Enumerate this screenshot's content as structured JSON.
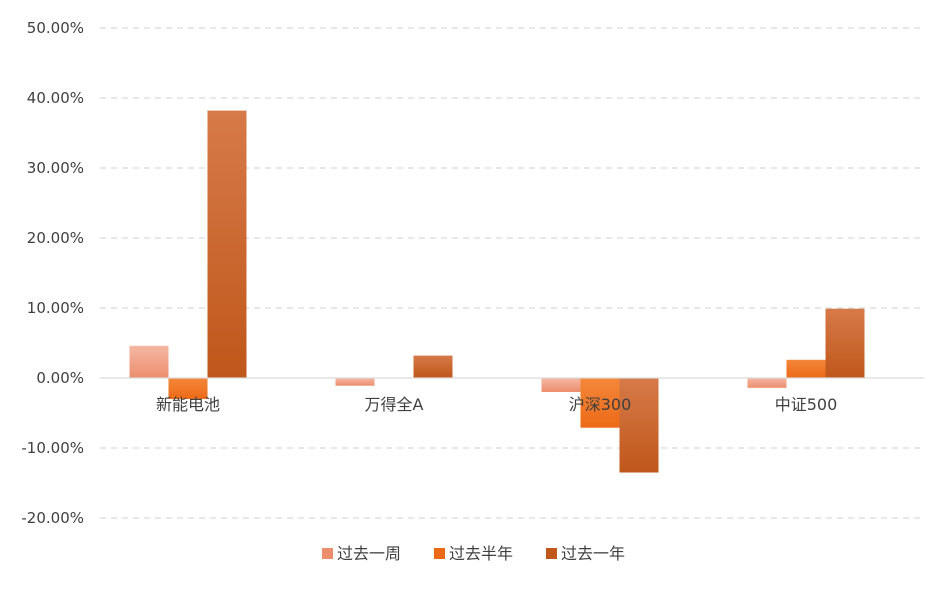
{
  "chart_data": {
    "type": "bar",
    "title": "",
    "xlabel": "",
    "ylabel": "",
    "categories": [
      "新能电池",
      "万得全A",
      "沪深300",
      "中证500"
    ],
    "ylim": [
      -20,
      50
    ],
    "yticks": [
      50,
      40,
      30,
      20,
      10,
      0,
      -10,
      -20
    ],
    "ytick_labels": [
      "50.00%",
      "40.00%",
      "30.00%",
      "20.00%",
      "10.00%",
      "0.00%",
      "-10.00%",
      "-20.00%"
    ],
    "grid": true,
    "legend_position": "bottom",
    "series": [
      {
        "name": "过去一周",
        "values": [
          4.6,
          -1.1,
          -2.0,
          -1.4
        ],
        "color_top": "#f5b7a3",
        "color_bottom": "#ec8e6e"
      },
      {
        "name": "过去半年",
        "values": [
          -3.0,
          0.0,
          -7.1,
          2.6
        ],
        "color_top": "#f4873a",
        "color_bottom": "#ec6a17"
      },
      {
        "name": "过去一年",
        "values": [
          38.2,
          3.2,
          -13.5,
          9.9
        ],
        "color_top": "#d67a49",
        "color_bottom": "#c0571b"
      }
    ]
  }
}
